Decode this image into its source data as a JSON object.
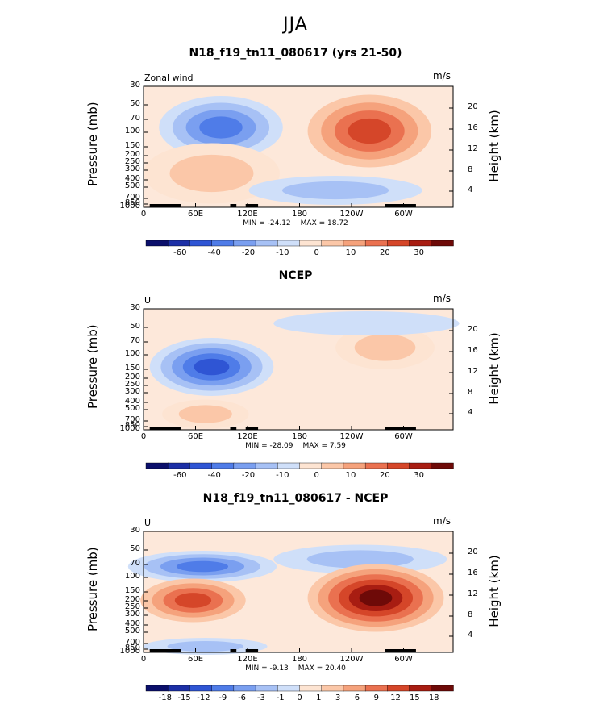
{
  "figure_title": "JJA",
  "chart_data": [
    {
      "type": "contour",
      "title": "N18_f19_tn11_080617 (yrs 21-50)",
      "corner_left": "Zonal wind",
      "corner_right": "m/s",
      "ylabel": "Pressure (mb)",
      "ylabel_right": "Height (km)",
      "y_ticks": [
        "30",
        "50",
        "70",
        "100",
        "150",
        "200",
        "250",
        "300",
        "400",
        "500",
        "700",
        "850",
        "1000"
      ],
      "height_ticks": [
        "20",
        "16",
        "12",
        "8",
        "4"
      ],
      "x_ticks": [
        "0",
        "60E",
        "120E",
        "180",
        "120W",
        "60W"
      ],
      "min_label": "MIN = -24.12",
      "max_label": "MAX = 18.72",
      "min": -24.12,
      "max": 18.72,
      "colorbar_labels": [
        "-60",
        "-40",
        "-20",
        "-10",
        "0",
        "10",
        "20",
        "30"
      ]
    },
    {
      "type": "contour",
      "title": "NCEP",
      "corner_left": "U",
      "corner_right": "m/s",
      "ylabel": "Pressure (mb)",
      "ylabel_right": "Height (km)",
      "y_ticks": [
        "30",
        "50",
        "70",
        "100",
        "150",
        "200",
        "250",
        "300",
        "400",
        "500",
        "700",
        "850",
        "1000"
      ],
      "height_ticks": [
        "20",
        "16",
        "12",
        "8",
        "4"
      ],
      "x_ticks": [
        "0",
        "60E",
        "120E",
        "180",
        "120W",
        "60W"
      ],
      "min_label": "MIN = -28.09",
      "max_label": "MAX = 7.59",
      "min": -28.09,
      "max": 7.59,
      "colorbar_labels": [
        "-60",
        "-40",
        "-20",
        "-10",
        "0",
        "10",
        "20",
        "30"
      ]
    },
    {
      "type": "contour",
      "title": "N18_f19_tn11_080617 - NCEP",
      "corner_left": "U",
      "corner_right": "m/s",
      "ylabel": "Pressure (mb)",
      "ylabel_right": "Height (km)",
      "y_ticks": [
        "30",
        "50",
        "70",
        "100",
        "150",
        "200",
        "250",
        "300",
        "400",
        "500",
        "700",
        "850",
        "1000"
      ],
      "height_ticks": [
        "20",
        "16",
        "12",
        "8",
        "4"
      ],
      "x_ticks": [
        "0",
        "60E",
        "120E",
        "180",
        "120W",
        "60W"
      ],
      "min_label": "MIN = -9.13",
      "max_label": "MAX = 20.40",
      "min": -9.13,
      "max": 20.4,
      "colorbar_labels": [
        "-18",
        "-15",
        "-12",
        "-9",
        "-6",
        "-3",
        "-1",
        "0",
        "1",
        "3",
        "6",
        "9",
        "12",
        "15",
        "18"
      ]
    }
  ],
  "colors": {
    "neg": [
      "#0b0f6b",
      "#1c2fa6",
      "#2f55d4",
      "#4f7ce8",
      "#7a9ff0",
      "#a7c1f5",
      "#cfdff9"
    ],
    "pos": [
      "#fde4d2",
      "#fbc7a8",
      "#f5a27c",
      "#ea7150",
      "#d54629",
      "#a81d12",
      "#6e0a08"
    ],
    "bg": "#fde8da"
  }
}
